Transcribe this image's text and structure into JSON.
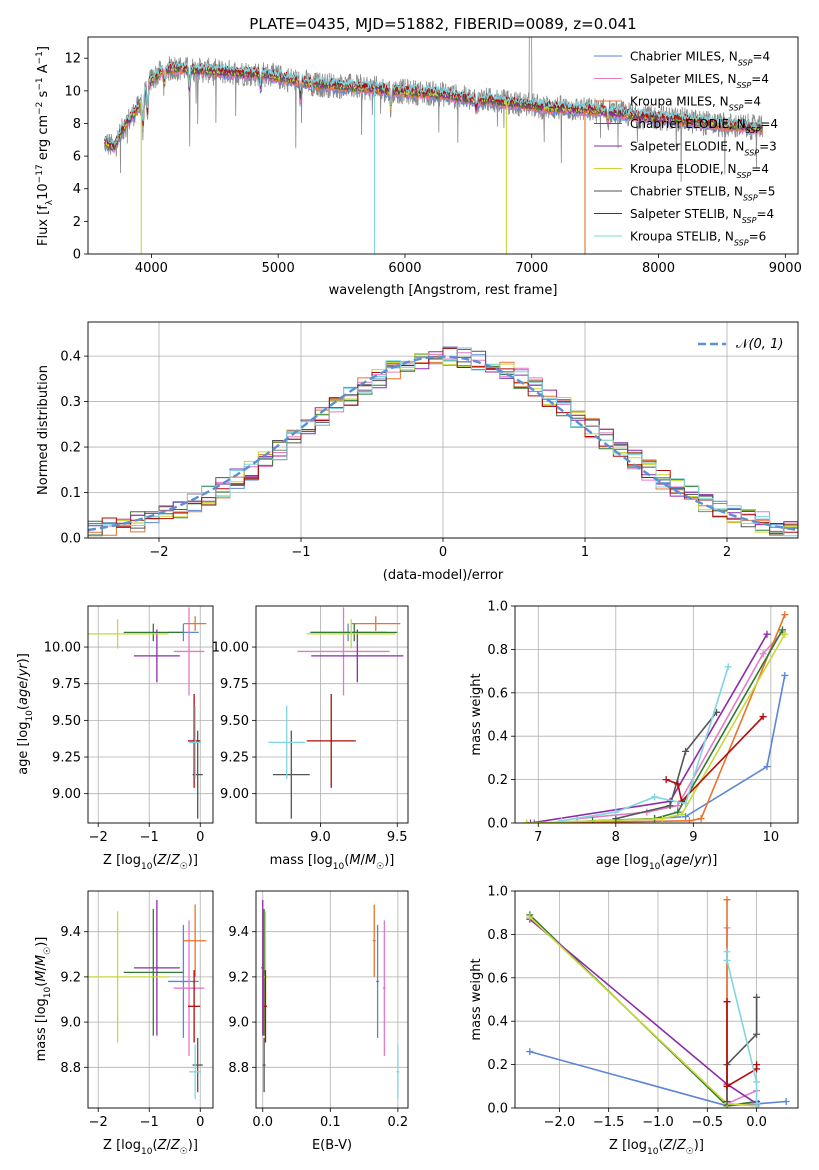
{
  "figure": {
    "title": "PLATE=0435, MJD=51882, FIBERID=0089, z=0.041"
  },
  "colors": {
    "chabrier_miles": "#5b86d6",
    "salpeter_miles": "#e57ac8",
    "kroupa_miles": "#e8742b",
    "chabrier_elodie": "#2f7a2f",
    "salpeter_elodie": "#8e2ca8",
    "kroupa_elodie": "#c8d83a",
    "chabrier_stelib": "#555555",
    "salpeter_stelib": "#b20b0b",
    "kroupa_stelib": "#7fd6df",
    "normal_curve": "#5b8fd6",
    "grid": "#b0b0b0"
  },
  "chart_data": [
    {
      "id": "spectrum",
      "type": "line",
      "title": "PLATE=0435, MJD=51882, FIBERID=0089, z=0.041",
      "xlabel": "wavelength [Angstrom, rest frame]",
      "ylabel": "Flux [fλ 10⁻¹⁷ erg cm⁻² s⁻¹ A⁻¹]",
      "xlim": [
        3500,
        9100
      ],
      "ylim": [
        0,
        13.3
      ],
      "xticks": [
        4000,
        5000,
        6000,
        7000,
        8000,
        9000
      ],
      "yticks": [
        0,
        2,
        4,
        6,
        8,
        10,
        12
      ],
      "grid": false,
      "legend_position": "top-right",
      "continuum": {
        "x": [
          3650,
          3700,
          3800,
          3900,
          4000,
          4100,
          4200,
          4300,
          4500,
          4700,
          4900,
          5100,
          5300,
          5500,
          5700,
          5900,
          6100,
          6300,
          6500,
          6700,
          6900,
          7100,
          7300,
          7500,
          7700,
          7900,
          8100,
          8300,
          8500,
          8700,
          8800
        ],
        "y": [
          6.8,
          6.5,
          8.0,
          9.0,
          10.7,
          11.3,
          11.4,
          11.3,
          11.2,
          11.1,
          11.0,
          10.7,
          10.4,
          10.3,
          10.2,
          10.0,
          9.9,
          9.8,
          9.5,
          9.4,
          9.2,
          9.0,
          8.9,
          8.8,
          8.6,
          8.4,
          8.3,
          8.1,
          7.9,
          7.8,
          7.7
        ]
      },
      "series": [
        {
          "name": "Chabrier MILES, N_SSP=4",
          "label_main": "Chabrier MILES, N",
          "sub": "SSP",
          "label_tail": "=4",
          "color_key": "chabrier_miles"
        },
        {
          "name": "Salpeter MILES, N_SSP=4",
          "label_main": "Salpeter MILES, N",
          "sub": "SSP",
          "label_tail": "=4",
          "color_key": "salpeter_miles"
        },
        {
          "name": "Kroupa MILES, N_SSP=4",
          "label_main": "Kroupa MILES, N",
          "sub": "SSP",
          "label_tail": "=4",
          "color_key": "kroupa_miles"
        },
        {
          "name": "Chabrier ELODIE, N_SSP=4",
          "label_main": "Chabrier ELODIE, N",
          "sub": "SSP",
          "label_tail": "=4",
          "color_key": "chabrier_elodie"
        },
        {
          "name": "Salpeter ELODIE, N_SSP=3",
          "label_main": "Salpeter ELODIE, N",
          "sub": "SSP",
          "label_tail": "=3",
          "color_key": "salpeter_elodie"
        },
        {
          "name": "Kroupa ELODIE, N_SSP=4",
          "label_main": "Kroupa ELODIE, N",
          "sub": "SSP",
          "label_tail": "=4",
          "color_key": "kroupa_elodie"
        },
        {
          "name": "Chabrier STELIB, N_SSP=5",
          "label_main": "Chabrier STELIB, N",
          "sub": "SSP",
          "label_tail": "=5",
          "color_key": "chabrier_stelib"
        },
        {
          "name": "Salpeter STELIB, N_SSP=4",
          "label_main": "Salpeter STELIB, N",
          "sub": "SSP",
          "label_tail": "=4",
          "color_key": "salpeter_stelib"
        },
        {
          "name": "Kroupa STELIB, N_SSP=6",
          "label_main": "Kroupa STELIB, N",
          "sub": "SSP",
          "label_tail": "=6",
          "color_key": "kroupa_stelib"
        }
      ],
      "drops": [
        {
          "x": 3920,
          "color_key": "kroupa_elodie"
        },
        {
          "x": 5760,
          "color_key": "kroupa_stelib"
        },
        {
          "x": 6800,
          "color_key": "kroupa_elodie"
        },
        {
          "x": 7420,
          "color_key": "kroupa_miles"
        }
      ]
    },
    {
      "id": "residuals",
      "type": "step",
      "xlabel": "(data-model)/error",
      "ylabel": "Normed distribution",
      "xlim": [
        -2.5,
        2.5
      ],
      "ylim": [
        0,
        0.475
      ],
      "xticks": [
        -2,
        -1,
        0,
        1,
        2
      ],
      "yticks": [
        0.0,
        0.1,
        0.2,
        0.3,
        0.4
      ],
      "grid": true,
      "legend_position": "top-right",
      "legend": "N(0,1)",
      "bin_width": 0.1
    },
    {
      "id": "age_vs_Z",
      "type": "errorbar",
      "xlabel": "Z [log10(Z/Z☉)]",
      "ylabel": "age  [log10(age/yr)]",
      "xlim": [
        -2.2,
        0.25
      ],
      "ylim": [
        8.8,
        10.28
      ],
      "xticks": [
        -2,
        -1,
        0
      ],
      "yticks": [
        9.0,
        9.25,
        9.5,
        9.75,
        10.0
      ],
      "grid": true
    },
    {
      "id": "age_vs_mass",
      "type": "errorbar",
      "xlabel": "mass [log10(M/M☉)]",
      "xlim": [
        8.58,
        9.57
      ],
      "ylim": [
        8.8,
        10.28
      ],
      "xticks": [
        9.0,
        9.5
      ],
      "yticks": [
        9.0,
        9.25,
        9.5,
        9.75,
        10.0
      ],
      "grid": true
    },
    {
      "id": "weight_vs_age",
      "type": "line",
      "xlabel": "age  [log10(age/yr)]",
      "ylabel": "mass weight",
      "xlim": [
        6.7,
        10.35
      ],
      "ylim": [
        0,
        1.0
      ],
      "xticks": [
        7,
        8,
        9,
        10
      ],
      "yticks": [
        0.0,
        0.2,
        0.4,
        0.6,
        0.8,
        1.0
      ],
      "grid": true
    },
    {
      "id": "mass_vs_Z",
      "type": "errorbar",
      "xlabel": "Z [log10(Z/Z☉)]",
      "ylabel": "mass [log10(M/M☉)]",
      "xlim": [
        -2.2,
        0.25
      ],
      "ylim": [
        8.62,
        9.58
      ],
      "xticks": [
        -2,
        -1,
        0
      ],
      "yticks": [
        8.8,
        9.0,
        9.2,
        9.4
      ],
      "grid": true
    },
    {
      "id": "mass_vs_ebv",
      "type": "errorbar",
      "xlabel": "E(B-V)",
      "xlim": [
        -0.01,
        0.215
      ],
      "ylim": [
        8.62,
        9.58
      ],
      "xticks": [
        0.0,
        0.1,
        0.2
      ],
      "yticks": [
        8.8,
        9.0,
        9.2,
        9.4
      ],
      "grid": true
    },
    {
      "id": "weight_vs_Z",
      "type": "line",
      "xlabel": "Z [log10(Z/Z☉)]",
      "ylabel": "mass weight",
      "xlim": [
        -2.45,
        0.42
      ],
      "ylim": [
        0,
        1.0
      ],
      "xticks": [
        -2.0,
        -1.5,
        -1.0,
        -0.5,
        0.0
      ],
      "yticks": [
        0.0,
        0.2,
        0.4,
        0.6,
        0.8,
        1.0
      ],
      "grid": true
    }
  ],
  "stellar_pops": [
    {
      "color_key": "chabrier_miles",
      "Z": -0.33,
      "Zerr": 0.3,
      "age": 10.1,
      "ageErr": 0.06,
      "mass": 9.18,
      "massErr": 0.25,
      "ebv": 0.17,
      "ebvErr": 0.2,
      "wa_age": [
        6.95,
        8.5,
        8.9,
        9.95,
        10.18
      ],
      "wa_w": [
        0.0,
        0.02,
        0.03,
        0.26,
        0.68
      ],
      "wz_z": [
        -2.3,
        -0.3,
        0.02,
        0.3
      ],
      "wz_w": [
        0.26,
        0.01,
        0.02,
        0.03
      ]
    },
    {
      "color_key": "salpeter_miles",
      "Z": -0.22,
      "Zerr": 0.3,
      "age": 9.97,
      "ageErr": 0.3,
      "mass": 9.15,
      "massErr": 0.3,
      "ebv": 0.18,
      "ebvErr": 0.21,
      "wa_age": [
        7.5,
        8.4,
        8.8,
        9.9,
        10.15
      ],
      "wa_w": [
        0.02,
        0.05,
        0.08,
        0.78,
        0.88
      ],
      "wz_z": [
        -0.3,
        -0.3,
        0.0
      ],
      "wz_w": [
        0.83,
        0.02,
        0.08
      ]
    },
    {
      "color_key": "kroupa_miles",
      "Z": -0.1,
      "Zerr": 0.22,
      "age": 10.16,
      "ageErr": 0.05,
      "mass": 9.36,
      "massErr": 0.16,
      "ebv": 0.165,
      "ebvErr": 0.18,
      "wa_age": [
        6.85,
        8.95,
        9.1,
        10.18
      ],
      "wa_w": [
        0.0,
        0.01,
        0.02,
        0.96
      ],
      "wz_z": [
        -0.3,
        -0.3,
        0.0
      ],
      "wz_w": [
        0.96,
        0.02,
        0.01
      ]
    },
    {
      "color_key": "chabrier_elodie",
      "Z": -0.92,
      "Zerr": 0.58,
      "age": 10.1,
      "ageErr": 0.06,
      "mass": 9.22,
      "massErr": 0.28,
      "ebv": 0.002,
      "ebvErr": 0.3,
      "wa_age": [
        7.7,
        8.5,
        8.8,
        10.15
      ],
      "wa_w": [
        0.01,
        0.02,
        0.05,
        0.89
      ],
      "wz_z": [
        -2.3,
        -0.3,
        0.0
      ],
      "wz_w": [
        0.89,
        0.01,
        0.03
      ]
    },
    {
      "color_key": "salpeter_elodie",
      "Z": -0.85,
      "Zerr": 0.45,
      "age": 9.94,
      "ageErr": 0.18,
      "mass": 9.24,
      "massErr": 0.3,
      "ebv": 0.0,
      "ebvErr": 0.33,
      "wa_age": [
        6.9,
        8.7,
        9.95
      ],
      "wa_w": [
        0.0,
        0.1,
        0.87
      ],
      "wz_z": [
        -2.3,
        -0.3,
        0.0
      ],
      "wz_w": [
        0.87,
        0.11,
        0.02
      ]
    },
    {
      "color_key": "kroupa_elodie",
      "Z": -1.62,
      "Zerr": 1.0,
      "age": 10.09,
      "ageErr": 0.1,
      "mass": 9.2,
      "massErr": 0.29,
      "ebv": 0.004,
      "ebvErr": 0.29,
      "wa_age": [
        6.85,
        8.6,
        8.85,
        10.18
      ],
      "wa_w": [
        0.0,
        0.02,
        0.04,
        0.87
      ],
      "wz_z": [
        -2.3,
        -0.3,
        0.0
      ],
      "wz_w": [
        0.88,
        0.02,
        0.01
      ]
    },
    {
      "color_key": "chabrier_stelib",
      "Z": -0.05,
      "Zerr": 0.1,
      "age": 9.13,
      "ageErr": 0.3,
      "mass": 8.81,
      "massErr": 0.12,
      "ebv": 0.002,
      "ebvErr": 0.12,
      "wa_age": [
        8.0,
        8.7,
        8.9,
        9.3
      ],
      "wa_w": [
        0.02,
        0.08,
        0.33,
        0.51
      ],
      "wz_z": [
        -0.3,
        -0.3,
        0.0,
        0.0
      ],
      "wz_w": [
        0.03,
        0.2,
        0.34,
        0.51
      ]
    },
    {
      "color_key": "salpeter_stelib",
      "Z": -0.12,
      "Zerr": 0.12,
      "age": 9.36,
      "ageErr": 0.32,
      "mass": 9.07,
      "massErr": 0.16,
      "ebv": 0.004,
      "ebvErr": 0.16,
      "wa_age": [
        8.65,
        8.8,
        8.85,
        9.9
      ],
      "wa_w": [
        0.2,
        0.18,
        0.1,
        0.49
      ],
      "wz_z": [
        -0.3,
        -0.3,
        0.0,
        0.0
      ],
      "wz_w": [
        0.49,
        0.1,
        0.18,
        0.2
      ]
    },
    {
      "color_key": "kroupa_stelib",
      "Z": -0.1,
      "Zerr": 0.12,
      "age": 9.35,
      "ageErr": 0.25,
      "mass": 8.78,
      "massErr": 0.12,
      "ebv": 0.2,
      "ebvErr": 0.12,
      "wa_age": [
        7.3,
        8.0,
        8.5,
        8.9,
        9.45
      ],
      "wa_w": [
        0.01,
        0.05,
        0.12,
        0.09,
        0.72
      ],
      "wz_z": [
        -0.3,
        -0.3,
        0.0,
        0.0
      ],
      "wz_w": [
        0.72,
        0.68,
        0.12,
        0.02
      ]
    }
  ]
}
